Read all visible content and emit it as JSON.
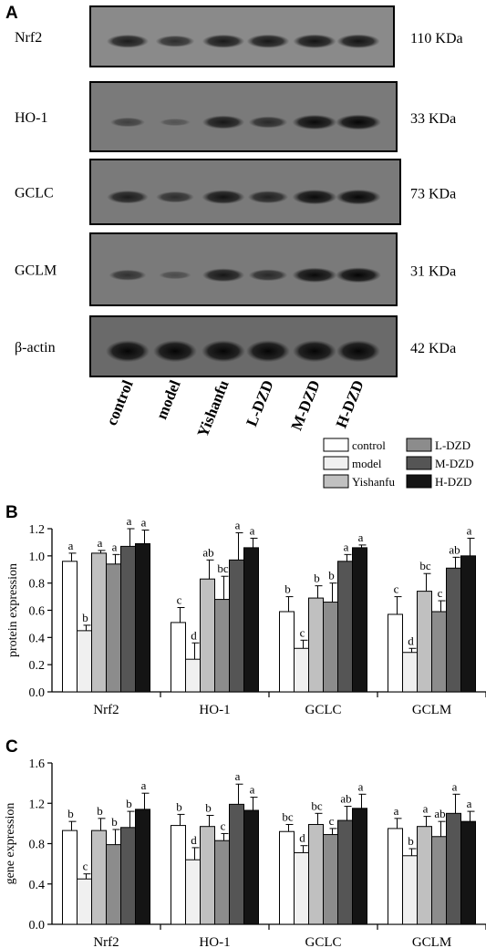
{
  "panels": {
    "a": "A",
    "b": "B",
    "c": "C"
  },
  "blot": {
    "lanes": [
      "control",
      "model",
      "Yishanfu",
      "L-DZD",
      "M-DZD",
      "H-DZD"
    ],
    "proteins": [
      {
        "name": "Nrf2",
        "size": "110 KDa",
        "band_intensity": [
          0.78,
          0.6,
          0.8,
          0.82,
          0.85,
          0.85
        ]
      },
      {
        "name": "HO-1",
        "size": "33 KDa",
        "band_intensity": [
          0.35,
          0.12,
          0.8,
          0.6,
          0.95,
          1.0
        ]
      },
      {
        "name": "GCLC",
        "size": "73 KDa",
        "band_intensity": [
          0.75,
          0.55,
          0.85,
          0.7,
          0.95,
          0.98
        ]
      },
      {
        "name": "GCLM",
        "size": "31 KDa",
        "band_intensity": [
          0.5,
          0.2,
          0.8,
          0.6,
          0.95,
          1.0
        ]
      },
      {
        "name": "β-actin",
        "size": "42 KDa",
        "band_intensity": [
          1.0,
          1.0,
          1.0,
          1.0,
          1.0,
          1.0
        ]
      }
    ]
  },
  "legend": {
    "items": [
      {
        "label": "control",
        "color": "#ffffff"
      },
      {
        "label": "model",
        "color": "#f0f0f0"
      },
      {
        "label": "Yishanfu",
        "color": "#c0c0c0"
      },
      {
        "label": "L-DZD",
        "color": "#8c8c8c"
      },
      {
        "label": "M-DZD",
        "color": "#555555"
      },
      {
        "label": "H-DZD",
        "color": "#141414"
      }
    ]
  },
  "chart_data": [
    {
      "type": "bar",
      "panel": "B",
      "ylabel": "protein expression",
      "ylim": [
        0,
        1.2
      ],
      "yticks": [
        "0.0",
        "0.2",
        "0.4",
        "0.6",
        "0.8",
        "1.0",
        "1.2"
      ],
      "categories": [
        "Nrf2",
        "HO-1",
        "GCLC",
        "GCLM"
      ],
      "series": [
        {
          "name": "control",
          "values": [
            0.96,
            0.51,
            0.59,
            0.57
          ],
          "errors": [
            0.06,
            0.11,
            0.11,
            0.13
          ],
          "letters": [
            "a",
            "c",
            "b",
            "c"
          ]
        },
        {
          "name": "model",
          "values": [
            0.45,
            0.24,
            0.32,
            0.29
          ],
          "errors": [
            0.04,
            0.12,
            0.06,
            0.03
          ],
          "letters": [
            "b",
            "d",
            "c",
            "d"
          ]
        },
        {
          "name": "Yishanfu",
          "values": [
            1.02,
            0.83,
            0.69,
            0.74
          ],
          "errors": [
            0.02,
            0.14,
            0.09,
            0.13
          ],
          "letters": [
            "a",
            "ab",
            "b",
            "bc"
          ]
        },
        {
          "name": "L-DZD",
          "values": [
            0.94,
            0.68,
            0.66,
            0.59
          ],
          "errors": [
            0.07,
            0.17,
            0.14,
            0.08
          ],
          "letters": [
            "a",
            "bc",
            "b",
            "c"
          ]
        },
        {
          "name": "M-DZD",
          "values": [
            1.07,
            0.97,
            0.96,
            0.91
          ],
          "errors": [
            0.13,
            0.2,
            0.05,
            0.08
          ],
          "letters": [
            "a",
            "a",
            "a",
            "ab"
          ]
        },
        {
          "name": "H-DZD",
          "values": [
            1.09,
            1.06,
            1.06,
            1.0
          ],
          "errors": [
            0.1,
            0.07,
            0.02,
            0.13
          ],
          "letters": [
            "a",
            "a",
            "a",
            "a"
          ]
        }
      ]
    },
    {
      "type": "bar",
      "panel": "C",
      "ylabel": "gene expression",
      "ylim": [
        0,
        1.6
      ],
      "yticks": [
        "0.0",
        "0.4",
        "0.8",
        "1.2",
        "1.6"
      ],
      "categories": [
        "Nrf2",
        "HO-1",
        "GCLC",
        "GCLM"
      ],
      "series": [
        {
          "name": "control",
          "values": [
            0.93,
            0.98,
            0.92,
            0.95
          ],
          "errors": [
            0.09,
            0.11,
            0.07,
            0.1
          ],
          "letters": [
            "b",
            "b",
            "bc",
            "a"
          ]
        },
        {
          "name": "model",
          "values": [
            0.45,
            0.64,
            0.71,
            0.68
          ],
          "errors": [
            0.05,
            0.12,
            0.07,
            0.07
          ],
          "letters": [
            "c",
            "d",
            "d",
            "b"
          ]
        },
        {
          "name": "Yishanfu",
          "values": [
            0.93,
            0.97,
            0.99,
            0.97
          ],
          "errors": [
            0.12,
            0.11,
            0.11,
            0.1
          ],
          "letters": [
            "b",
            "b",
            "bc",
            "a"
          ]
        },
        {
          "name": "L-DZD",
          "values": [
            0.79,
            0.83,
            0.89,
            0.87
          ],
          "errors": [
            0.15,
            0.07,
            0.06,
            0.15
          ],
          "letters": [
            "b",
            "c",
            "c",
            "ab"
          ]
        },
        {
          "name": "M-DZD",
          "values": [
            0.96,
            1.19,
            1.03,
            1.1
          ],
          "errors": [
            0.16,
            0.2,
            0.14,
            0.19
          ],
          "letters": [
            "b",
            "a",
            "ab",
            "a"
          ]
        },
        {
          "name": "H-DZD",
          "values": [
            1.14,
            1.13,
            1.15,
            1.02
          ],
          "errors": [
            0.16,
            0.13,
            0.14,
            0.1
          ],
          "letters": [
            "a",
            "a",
            "a",
            "a"
          ]
        }
      ]
    }
  ]
}
